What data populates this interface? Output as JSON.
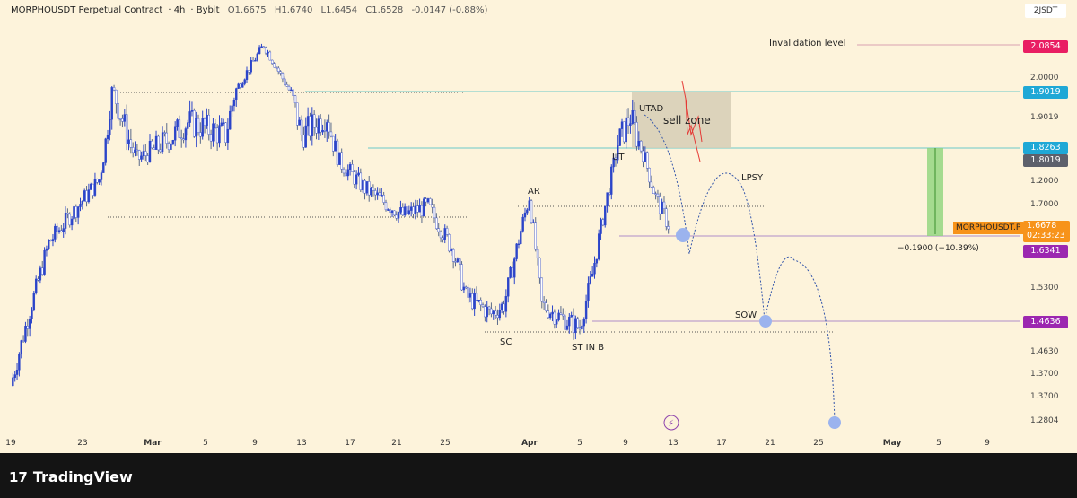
{
  "header": {
    "symbol": "MORPHOUSDT Perpetual Contract",
    "interval": "4h",
    "exchange": "Bybit",
    "open": "O1.6675",
    "high": "H1.6740",
    "low": "L1.6454",
    "close": "C1.6528",
    "change": "-0.0147 (-0.88%)"
  },
  "currency": "2JSDT",
  "price_ticks": [
    "2.0000",
    "1.9019",
    "1.2000",
    "1.7000",
    "1.5300",
    "1.4630",
    "1.3700",
    "1.3700",
    "1.2804"
  ],
  "price_labels": [
    {
      "value": "2.0854",
      "color": "#e91e63"
    },
    {
      "value": "1.9019",
      "color": "#1fa8d6"
    },
    {
      "value": "1.8263",
      "color": "#1fa8d6"
    },
    {
      "value": "1.8019",
      "color": "#5d606b"
    },
    {
      "value": "1.6341",
      "color": "#9c27b0"
    },
    {
      "value": "1.4636",
      "color": "#9c27b0"
    }
  ],
  "last_price": {
    "symbol": "MORPHOUSDT.P",
    "value": "1.6678",
    "countdown": "02:33:23",
    "color": "#f7931a"
  },
  "x_ticks": [
    "19",
    "23",
    "Mar",
    "5",
    "9",
    "13",
    "17",
    "21",
    "25",
    "Apr",
    "5",
    "9",
    "13",
    "17",
    "21",
    "25",
    "May",
    "5",
    "9"
  ],
  "annotations": {
    "invalidation": "Invalidation level",
    "utad": "UTAD",
    "sell_zone": "sell zone",
    "ut": "UT",
    "ar": "AR",
    "lpsy": "LPSY",
    "sc": "SC",
    "st_in_b": "ST IN B",
    "sow": "SOW",
    "measure": "−0.1900 (−10.39%)"
  },
  "footer": {
    "brand": "TradingView"
  },
  "chart_data": {
    "type": "candlestick",
    "interval": "4h",
    "candle_color": "#2b44c9",
    "price_path": [
      [
        "2025-02-19",
        1.346
      ],
      [
        "2025-02-22",
        1.62
      ],
      [
        "2025-02-26",
        1.756
      ],
      [
        "2025-02-27",
        1.909
      ],
      [
        "2025-03-01",
        1.8
      ],
      [
        "2025-03-05",
        1.86
      ],
      [
        "2025-03-08",
        1.843
      ],
      [
        "2025-03-11",
        2.089
      ],
      [
        "2025-03-13",
        1.909
      ],
      [
        "2025-03-14",
        1.843
      ],
      [
        "2025-03-16",
        1.87
      ],
      [
        "2025-03-17",
        1.795
      ],
      [
        "2025-03-19",
        1.737
      ],
      [
        "2025-03-22",
        1.679
      ],
      [
        "2025-03-24",
        1.698
      ],
      [
        "2025-03-26",
        1.603
      ],
      [
        "2025-03-27",
        1.514
      ],
      [
        "2025-03-29",
        1.478
      ],
      [
        "2025-03-30",
        1.496
      ],
      [
        "2025-04-01",
        1.72
      ],
      [
        "2025-04-02",
        1.496
      ],
      [
        "2025-04-03",
        1.478
      ],
      [
        "2025-04-05",
        1.452
      ],
      [
        "2025-04-06",
        1.558
      ],
      [
        "2025-04-07",
        1.698
      ],
      [
        "2025-04-08",
        1.831
      ],
      [
        "2025-04-09",
        1.868
      ],
      [
        "2025-04-10",
        1.815
      ],
      [
        "2025-04-11",
        1.718
      ],
      [
        "2025-04-12",
        1.659
      ]
    ]
  }
}
